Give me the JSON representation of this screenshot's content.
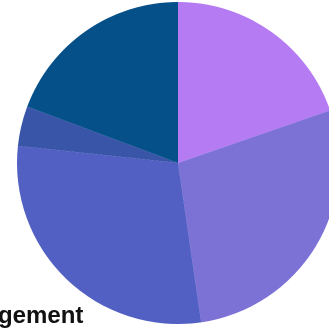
{
  "chart_data": {
    "type": "pie",
    "categories": [
      "",
      "",
      "",
      "",
      ""
    ],
    "values": [
      19.7,
      28.0,
      29.0,
      4.0,
      19.3
    ],
    "colors": [
      "#b57bf2",
      "#7c72d6",
      "#5160c2",
      "#3955a8",
      "#06508a"
    ],
    "start_angle_deg": 0,
    "direction": "clockwise",
    "annotations": [
      {
        "text": "gement",
        "slice_index": 2
      }
    ]
  }
}
